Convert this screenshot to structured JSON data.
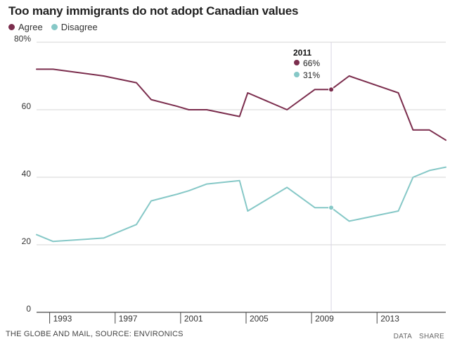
{
  "chart_data": {
    "type": "line",
    "title": "Too many immigrants do not adopt Canadian values",
    "y_tick_labels": [
      "0",
      "20",
      "40",
      "60",
      "80%"
    ],
    "y_ticks": [
      0,
      20,
      40,
      60,
      80
    ],
    "ylim": [
      0,
      80
    ],
    "xlim": [
      1992.2,
      2017.2
    ],
    "x_ticks": [
      1993,
      1997,
      2001,
      2005,
      2009,
      2013
    ],
    "x_tick_labels": [
      "1993",
      "1997",
      "2001",
      "2005",
      "2009",
      "2013"
    ],
    "grid": true,
    "legend_position": "top-left",
    "series": [
      {
        "name": "Agree",
        "color": "#7b2d4d",
        "points": [
          [
            1992.2,
            72
          ],
          [
            1993.2,
            72
          ],
          [
            1996.3,
            70
          ],
          [
            1998.3,
            68
          ],
          [
            1999.2,
            63
          ],
          [
            2000.8,
            61
          ],
          [
            2001.5,
            60
          ],
          [
            2002.6,
            60
          ],
          [
            2004.6,
            58
          ],
          [
            2005.1,
            65
          ],
          [
            2007.5,
            60
          ],
          [
            2009.2,
            66
          ],
          [
            2010.2,
            66
          ],
          [
            2011.3,
            70
          ],
          [
            2014.3,
            65
          ],
          [
            2015.2,
            54
          ],
          [
            2016.2,
            54
          ],
          [
            2017.2,
            51
          ]
        ]
      },
      {
        "name": "Disagree",
        "color": "#86c8c7",
        "points": [
          [
            1992.2,
            23
          ],
          [
            1993.2,
            21
          ],
          [
            1996.3,
            22
          ],
          [
            1998.3,
            26
          ],
          [
            1999.2,
            33
          ],
          [
            2000.8,
            35
          ],
          [
            2001.5,
            36
          ],
          [
            2002.6,
            38
          ],
          [
            2004.6,
            39
          ],
          [
            2005.1,
            30
          ],
          [
            2007.5,
            37
          ],
          [
            2009.2,
            31
          ],
          [
            2010.2,
            31
          ],
          [
            2011.3,
            27
          ],
          [
            2014.3,
            30
          ],
          [
            2015.2,
            40
          ],
          [
            2016.2,
            42
          ],
          [
            2017.2,
            43
          ]
        ]
      }
    ],
    "highlight": {
      "x": 2010.2,
      "label": "2011",
      "agree_label": "66%",
      "disagree_label": "31%",
      "agree_value": 66,
      "disagree_value": 31
    }
  },
  "footer": {
    "source": "THE GLOBE AND MAIL, SOURCE: ENVIRONICS",
    "data_link": "DATA",
    "share_link": "SHARE"
  }
}
